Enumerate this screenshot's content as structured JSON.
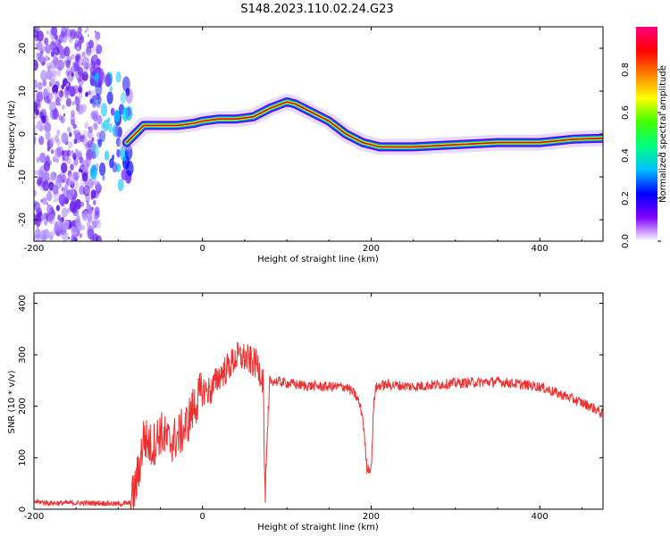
{
  "figure_title": "S148.2023.110.02.24.G23",
  "colors": {
    "snr_line": "#f03030",
    "ridge_core": "#e00000",
    "axis": "#000000"
  },
  "chart_data": [
    {
      "type": "heatmap",
      "title": "S148.2023.110.02.24.G23",
      "xlabel": "Height of straight line (km)",
      "ylabel": "Frequency (Hz)",
      "xlim": [
        -200,
        475
      ],
      "ylim": [
        -25,
        25
      ],
      "x_ticks": [
        -200,
        0,
        200,
        400
      ],
      "y_ticks": [
        -20,
        -10,
        0,
        10,
        20
      ],
      "grid": false,
      "colorbar": {
        "label": "Normalized spectral amplitude",
        "range": [
          0,
          1
        ],
        "ticks": [
          "0.0",
          "0.2",
          "0.4",
          "0.6",
          "0.8"
        ],
        "colormap": [
          "#ffffff",
          "#8000ff",
          "#0000ff",
          "#00c0ff",
          "#00ff80",
          "#40ff00",
          "#ffff00",
          "#ff8000",
          "#ff0000",
          "#ff0080"
        ]
      },
      "ridge": {
        "x": [
          -90,
          -80,
          -70,
          -50,
          -30,
          -10,
          0,
          20,
          40,
          60,
          80,
          100,
          110,
          130,
          150,
          170,
          190,
          210,
          250,
          300,
          350,
          400,
          440,
          475
        ],
        "frequency": [
          -2,
          0,
          2,
          2,
          2,
          2.5,
          3,
          3.5,
          3.5,
          4,
          6,
          7.5,
          7,
          5,
          3,
          0,
          -2,
          -3,
          -3,
          -2.5,
          -2,
          -2,
          -1.2,
          -1
        ]
      },
      "noise_region_x": [
        -200,
        -130
      ]
    },
    {
      "type": "line",
      "xlabel": "Height of straight line (km)",
      "ylabel": "SNR (10 * v/v)",
      "xlim": [
        -200,
        475
      ],
      "ylim": [
        0,
        420
      ],
      "x_ticks": [
        -200,
        0,
        200,
        400
      ],
      "y_ticks": [
        0,
        100,
        200,
        300,
        400
      ],
      "grid": false,
      "series": [
        {
          "x": [
            -200,
            -180,
            -150,
            -120,
            -100,
            -85,
            -80,
            -75,
            -70,
            -60,
            -50,
            -40,
            -30,
            -20,
            -10,
            0,
            10,
            20,
            30,
            40,
            50,
            60,
            65,
            70,
            72,
            74,
            80,
            100,
            120,
            150,
            170,
            180,
            185,
            190,
            195,
            200,
            203,
            205,
            210,
            220,
            250,
            300,
            350,
            400,
            430,
            460,
            475
          ],
          "y": [
            15,
            12,
            12,
            12,
            10,
            12,
            40,
            80,
            140,
            120,
            150,
            130,
            140,
            160,
            200,
            230,
            230,
            260,
            275,
            295,
            295,
            285,
            280,
            260,
            250,
            20,
            250,
            245,
            240,
            238,
            238,
            225,
            210,
            180,
            80,
            78,
            200,
            235,
            240,
            242,
            238,
            245,
            248,
            238,
            220,
            200,
            185
          ]
        }
      ]
    }
  ]
}
